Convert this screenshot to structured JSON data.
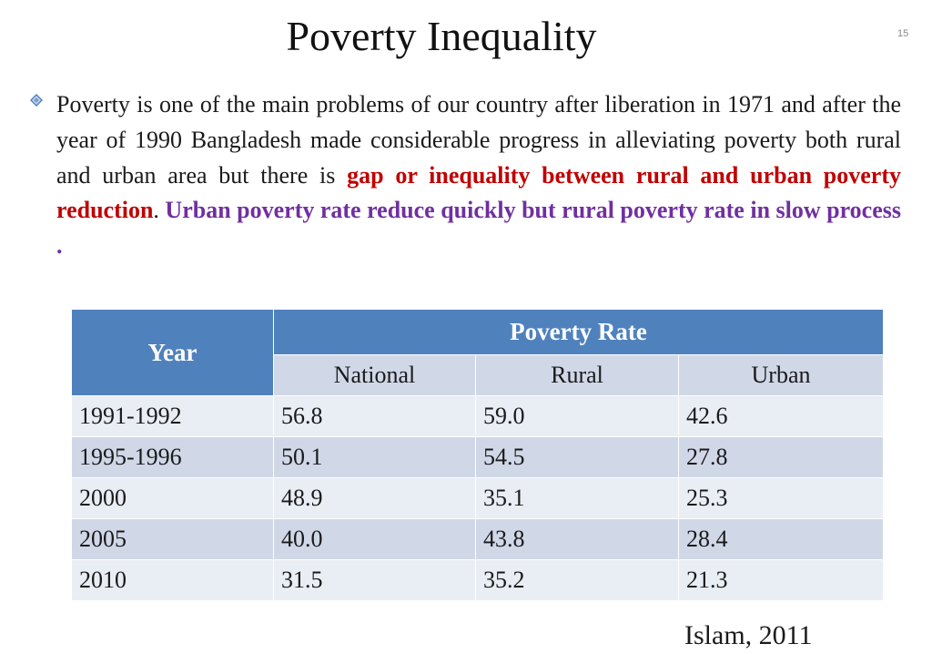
{
  "slide": {
    "title": "Poverty Inequality",
    "number": "15"
  },
  "paragraph": {
    "plain_text": "Poverty is one of the main problems of our country after liberation in 1971 and after the year of 1990 Bangladesh made considerable progress in alleviating poverty both rural and urban area but there is ",
    "red_text": "gap or inequality between rural and urban poverty reduction",
    "period": ".",
    "purple_text": "Urban poverty rate reduce quickly but rural poverty rate in slow process ."
  },
  "table": {
    "year_header": "Year",
    "group_header": "Poverty Rate",
    "sub_headers": [
      "National",
      "Rural",
      "Urban"
    ],
    "rows": [
      [
        "1991-1992",
        "56.8",
        "59.0",
        "42.6"
      ],
      [
        "1995-1996",
        "50.1",
        "54.5",
        "27.8"
      ],
      [
        "2000",
        "48.9",
        "35.1",
        "25.3"
      ],
      [
        "2005",
        "40.0",
        "43.8",
        "28.4"
      ],
      [
        "2010",
        "31.5",
        "35.2",
        "21.3"
      ]
    ]
  },
  "source": "Islam, 2011",
  "icons": {
    "bullet": "diamond-bullet-icon"
  },
  "colors": {
    "header_blue": "#4f81bd",
    "row_light": "#e9edf4",
    "row_dark": "#d0d8e8",
    "emphasis_red": "#c00000",
    "emphasis_purple": "#7030a0"
  }
}
